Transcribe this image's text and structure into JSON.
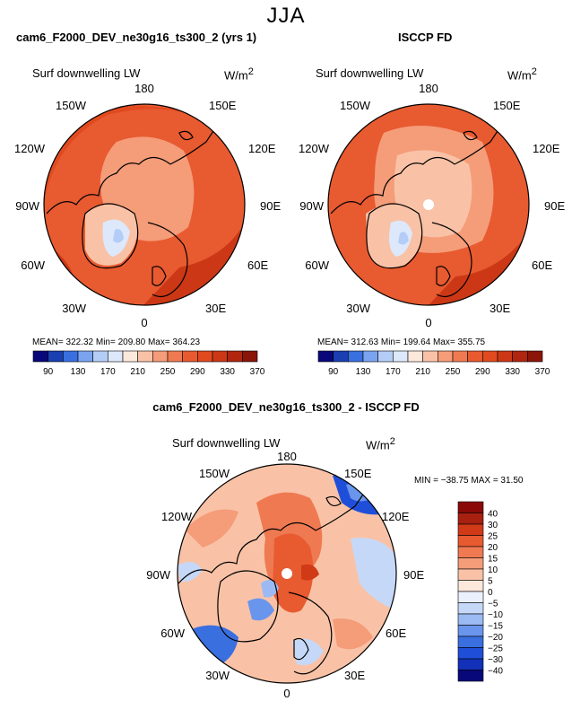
{
  "season": "JJA",
  "panel1": {
    "title": "cam6_F2000_DEV_ne30g16_ts300_2 (yrs 1)",
    "variable": "Surf downwelling LW",
    "units": "W/m",
    "units_sup": "2",
    "stats": "MEAN= 322.32   Min= 209.80   Max= 364.23"
  },
  "panel2": {
    "title": "ISCCP FD",
    "variable": "Surf downwelling LW",
    "units": "W/m",
    "units_sup": "2",
    "stats": "MEAN= 312.63   Min= 199.64   Max= 355.75"
  },
  "panel3": {
    "title": "cam6_F2000_DEV_ne30g16_ts300_2 - ISCCP FD",
    "variable": "Surf downwelling LW",
    "units": "W/m",
    "units_sup": "2",
    "minmax": "MIN = −38.75  MAX =  31.50"
  },
  "lon_labels": {
    "l180": "180",
    "l150e": "150E",
    "l120e": "120E",
    "l90e": "90E",
    "l60e": "60E",
    "l30e": "30E",
    "l0": "0",
    "l30w": "30W",
    "l60w": "60W",
    "l90w": "90W",
    "l120w": "120W",
    "l150w": "150W"
  },
  "colors": {
    "abs_scale": [
      "#08087a",
      "#1a3fb0",
      "#3a6fe0",
      "#7aa4f0",
      "#b4cdf6",
      "#dde8fb",
      "#fde8dc",
      "#f9c2a6",
      "#f59c79",
      "#ef7a52",
      "#e85a30",
      "#e14a1f",
      "#cc3816",
      "#b0250f",
      "#8a1508"
    ],
    "diff_scale": [
      "#08087a",
      "#1230b8",
      "#1f4fd9",
      "#3a6fe0",
      "#6a95ec",
      "#9bbaf3",
      "#c6d8f8",
      "#eaf1fc",
      "#fde8dc",
      "#f9c2a6",
      "#f59c79",
      "#ef7a52",
      "#e85a30",
      "#d03a16",
      "#a82010",
      "#8a0a08"
    ]
  },
  "chart_data": [
    {
      "type": "heatmap",
      "title": "cam6_F2000_DEV_ne30g16_ts300_2 (yrs 1)",
      "variable": "Surf downwelling LW",
      "units": "W/m2",
      "projection": "north polar stereographic",
      "colorbar_ticks": [
        90,
        130,
        170,
        210,
        250,
        290,
        330,
        370
      ],
      "stats": {
        "mean": 322.32,
        "min": 209.8,
        "max": 364.23
      }
    },
    {
      "type": "heatmap",
      "title": "ISCCP FD",
      "variable": "Surf downwelling LW",
      "units": "W/m2",
      "projection": "north polar stereographic",
      "colorbar_ticks": [
        90,
        130,
        170,
        210,
        250,
        290,
        330,
        370
      ],
      "stats": {
        "mean": 312.63,
        "min": 199.64,
        "max": 355.75
      }
    },
    {
      "type": "heatmap",
      "title": "cam6_F2000_DEV_ne30g16_ts300_2 - ISCCP FD",
      "variable": "Surf downwelling LW",
      "units": "W/m2",
      "projection": "north polar stereographic",
      "colorbar_ticks": [
        40,
        30,
        25,
        20,
        15,
        10,
        5,
        0,
        -5,
        -10,
        -15,
        -20,
        -25,
        -30,
        -40
      ],
      "stats": {
        "min": -38.75,
        "max": 31.5
      }
    }
  ]
}
